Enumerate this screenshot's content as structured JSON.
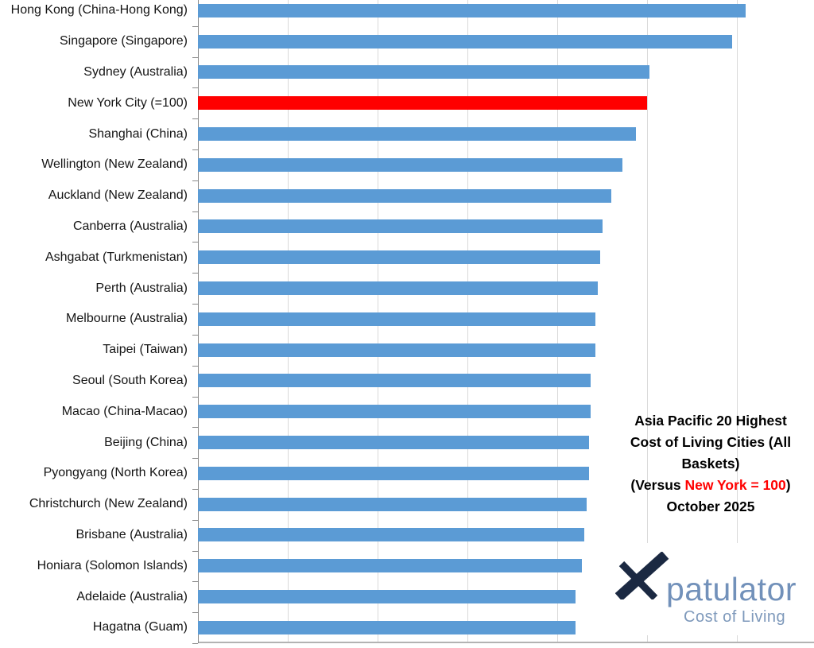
{
  "chart_data": {
    "type": "bar",
    "orientation": "horizontal",
    "title": "Asia Pacific 20 Highest Cost of Living Cities (All Baskets) (Versus New York = 100) October 2025",
    "categories": [
      "Hong Kong (China-Hong Kong)",
      "Singapore (Singapore)",
      "Sydney (Australia)",
      "New York City (=100)",
      "Shanghai (China)",
      "Wellington (New Zealand)",
      "Auckland (New Zealand)",
      "Canberra (Australia)",
      "Ashgabat (Turkmenistan)",
      "Perth (Australia)",
      "Melbourne (Australia)",
      "Taipei (Taiwan)",
      "Seoul (South Korea)",
      "Macao (China-Macao)",
      "Beijing (China)",
      "Pyongyang (North Korea)",
      "Christchurch (New Zealand)",
      "Brisbane (Australia)",
      "Honiara (Solomon Islands)",
      "Adelaide (Australia)",
      "Hagatna (Guam)"
    ],
    "values": [
      122,
      119,
      100.5,
      100,
      97.5,
      94.5,
      92,
      90,
      89.5,
      89,
      88.5,
      88.5,
      87.5,
      87.5,
      87,
      87,
      86.5,
      86,
      85.5,
      84,
      84
    ],
    "highlight_index": 3,
    "bar_color": "#5B9BD5",
    "highlight_color": "#FF0000",
    "xlim": [
      0,
      137
    ],
    "gridlines": [
      20,
      40,
      60,
      80,
      100,
      120
    ],
    "grid": true,
    "xlabel": "",
    "ylabel": "",
    "value_axis_labels_visible": false,
    "legend": "none"
  },
  "annotation": {
    "lines": [
      "Asia Pacific 20 Highest",
      "Cost of Living Cities (All",
      "Baskets)"
    ],
    "versus_prefix": "(Versus ",
    "versus_highlight": "New York = 100",
    "versus_suffix": ")",
    "date_line": "October 2025",
    "highlight_color": "#FF0000"
  },
  "logo": {
    "x_icon": "stylized-x",
    "name_rest": "patulator",
    "tagline": "Cost of Living",
    "x_color": "#1b2942",
    "name_color": "#7291ba",
    "tagline_color": "#7e99bb"
  }
}
